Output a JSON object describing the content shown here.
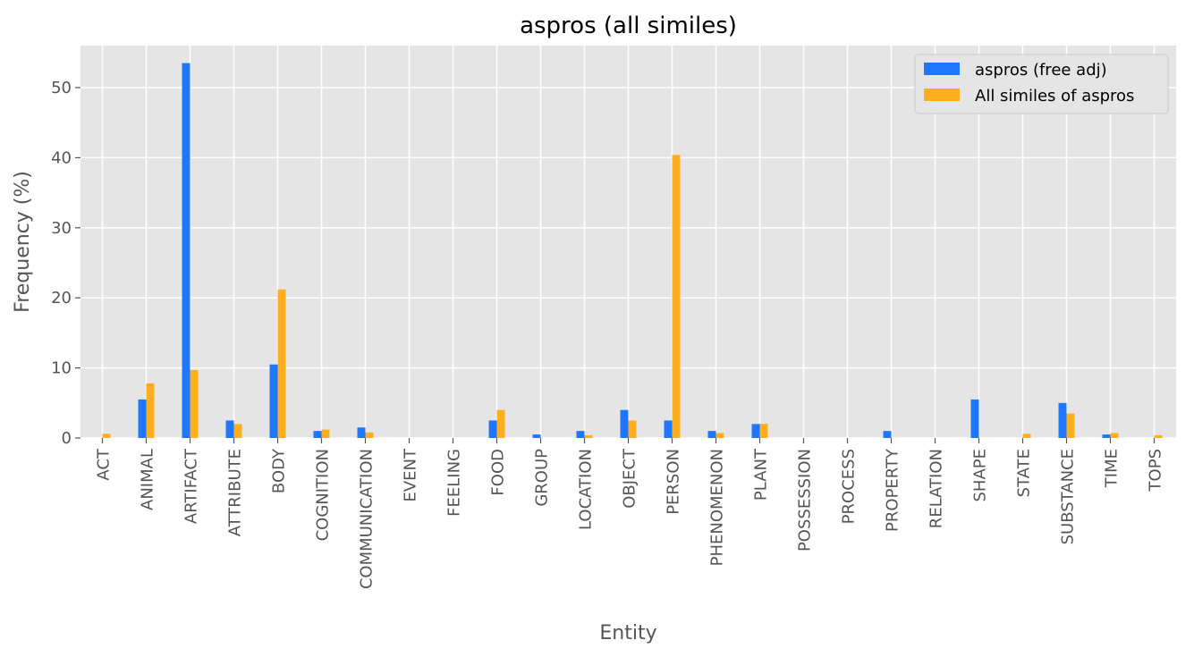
{
  "chart_data": {
    "type": "bar",
    "title": "aspros (all similes)",
    "xlabel": "Entity",
    "ylabel": "Frequency (%)",
    "ylim": [
      0,
      56
    ],
    "yticks": [
      0,
      10,
      20,
      30,
      40,
      50
    ],
    "grid": true,
    "legend_position": "top-right",
    "categories": [
      "ACT",
      "ANIMAL",
      "ARTIFACT",
      "ATTRIBUTE",
      "BODY",
      "COGNITION",
      "COMMUNICATION",
      "EVENT",
      "FEELING",
      "FOOD",
      "GROUP",
      "LOCATION",
      "OBJECT",
      "PERSON",
      "PHENOMENON",
      "PLANT",
      "POSSESSION",
      "PROCESS",
      "PROPERTY",
      "RELATION",
      "SHAPE",
      "STATE",
      "SUBSTANCE",
      "TIME",
      "TOPS"
    ],
    "series": [
      {
        "name": "aspros (free adj)",
        "color": "#1f77ff",
        "values": [
          0,
          5.5,
          53.5,
          2.5,
          10.5,
          1.0,
          1.5,
          0,
          0,
          2.5,
          0.5,
          1.0,
          4.0,
          2.5,
          1.0,
          2.0,
          0,
          0,
          1.0,
          0,
          5.5,
          0,
          5.0,
          0.5,
          0
        ]
      },
      {
        "name": "All similes of aspros",
        "color": "#ffae1f",
        "values": [
          0.6,
          7.8,
          9.7,
          2.0,
          21.2,
          1.2,
          0.8,
          0,
          0,
          4.0,
          0,
          0.4,
          2.5,
          40.4,
          0.7,
          2.0,
          0,
          0,
          0,
          0,
          0,
          0.6,
          3.5,
          0.7,
          0.4
        ]
      }
    ],
    "background_color": "#e5e5e5",
    "grid_color": "#ffffff"
  }
}
